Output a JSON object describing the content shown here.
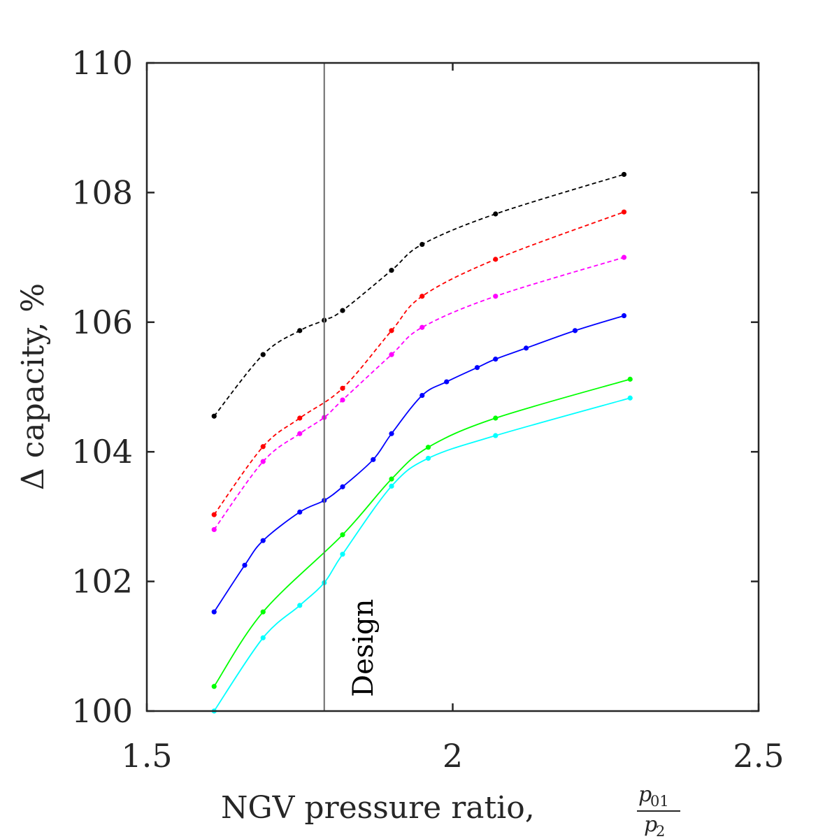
{
  "chart_data": {
    "type": "line",
    "xlabel": "NGV pressure ratio, ",
    "xlabel_fraction": {
      "num_base": "p",
      "num_sub": "01",
      "den_base": "p",
      "den_sub": "2"
    },
    "ylabel": "Δ capacity, %",
    "xlim": [
      1.5,
      2.5
    ],
    "ylim": [
      100,
      110
    ],
    "xticks": [
      1.5,
      2,
      2.5
    ],
    "xtick_labels": [
      "1.5",
      "2",
      "2.5"
    ],
    "yticks": [
      100,
      102,
      104,
      106,
      108,
      110
    ],
    "ytick_labels": [
      "100",
      "102",
      "104",
      "106",
      "108",
      "110"
    ],
    "grid": false,
    "annotations": [
      {
        "text": "Design",
        "x": 1.79,
        "type": "vertical-line"
      }
    ],
    "series": [
      {
        "color": "#000000",
        "style": "dashed",
        "x": [
          1.61,
          1.69,
          1.75,
          1.79,
          1.82,
          1.9,
          1.95,
          2.07,
          2.28
        ],
        "y": [
          104.55,
          105.5,
          105.87,
          106.03,
          106.18,
          106.8,
          107.2,
          107.67,
          108.28
        ]
      },
      {
        "color": "#ff0000",
        "style": "dashed",
        "x": [
          1.61,
          1.69,
          1.75,
          1.82,
          1.9,
          1.95,
          2.07,
          2.28
        ],
        "y": [
          103.03,
          104.08,
          104.52,
          104.98,
          105.87,
          106.4,
          106.97,
          107.7
        ]
      },
      {
        "color": "#ff00ff",
        "style": "dashed",
        "x": [
          1.61,
          1.69,
          1.75,
          1.79,
          1.82,
          1.9,
          1.95,
          2.07,
          2.28
        ],
        "y": [
          102.8,
          103.85,
          104.28,
          104.53,
          104.8,
          105.5,
          105.92,
          106.4,
          107.0
        ]
      },
      {
        "color": "#0000ff",
        "style": "solid",
        "x": [
          1.61,
          1.66,
          1.69,
          1.75,
          1.79,
          1.82,
          1.87,
          1.9,
          1.95,
          1.99,
          2.04,
          2.07,
          2.12,
          2.2,
          2.28
        ],
        "y": [
          101.53,
          102.25,
          102.63,
          103.07,
          103.25,
          103.46,
          103.88,
          104.28,
          104.87,
          105.08,
          105.3,
          105.43,
          105.6,
          105.87,
          106.1
        ]
      },
      {
        "color": "#00ff00",
        "style": "solid",
        "x": [
          1.61,
          1.69,
          1.82,
          1.9,
          1.96,
          2.07,
          2.29
        ],
        "y": [
          100.38,
          101.53,
          102.72,
          103.58,
          104.07,
          104.52,
          105.12
        ]
      },
      {
        "color": "#00ffff",
        "style": "solid",
        "x": [
          1.61,
          1.69,
          1.75,
          1.79,
          1.82,
          1.9,
          1.96,
          2.07,
          2.29
        ],
        "y": [
          100.0,
          101.13,
          101.63,
          101.98,
          102.42,
          103.47,
          103.9,
          104.25,
          104.83
        ]
      }
    ]
  }
}
